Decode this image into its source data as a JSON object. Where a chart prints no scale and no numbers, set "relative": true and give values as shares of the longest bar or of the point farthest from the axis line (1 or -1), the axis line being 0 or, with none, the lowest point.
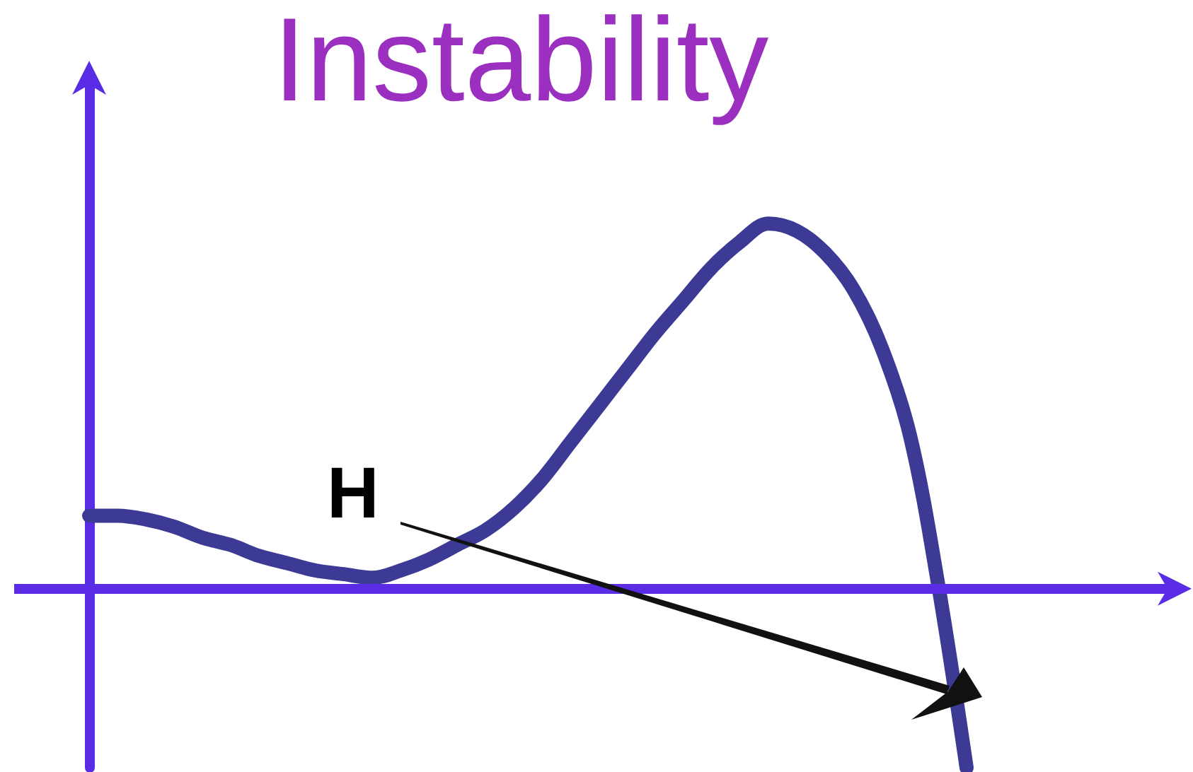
{
  "chart_data": {
    "type": "line",
    "title": "Instability",
    "annotations": [
      "H"
    ],
    "relative": true,
    "grid": false,
    "marker": "none",
    "color": "#3d3a96",
    "ref_lines": [
      {
        "axis": "y",
        "value": 0,
        "color": "#5a2ce6"
      }
    ],
    "categories": [
      null,
      null,
      null,
      null,
      null,
      null,
      null,
      null,
      null,
      null,
      null,
      null,
      null,
      null,
      null,
      null,
      null,
      null,
      null,
      null,
      null,
      null,
      null,
      null,
      null,
      null,
      null,
      null,
      null,
      null,
      null,
      null
    ],
    "values": [
      0.2,
      0.2,
      0.19,
      0.17,
      0.14,
      0.12,
      0.09,
      0.07,
      0.05,
      0.04,
      0.03,
      0.05,
      0.08,
      0.12,
      0.16,
      0.22,
      0.3,
      0.4,
      0.5,
      0.6,
      0.7,
      0.79,
      0.88,
      0.95,
      1.0,
      0.98,
      0.92,
      0.82,
      0.66,
      0.42,
      0.01,
      -0.49
    ]
  }
}
